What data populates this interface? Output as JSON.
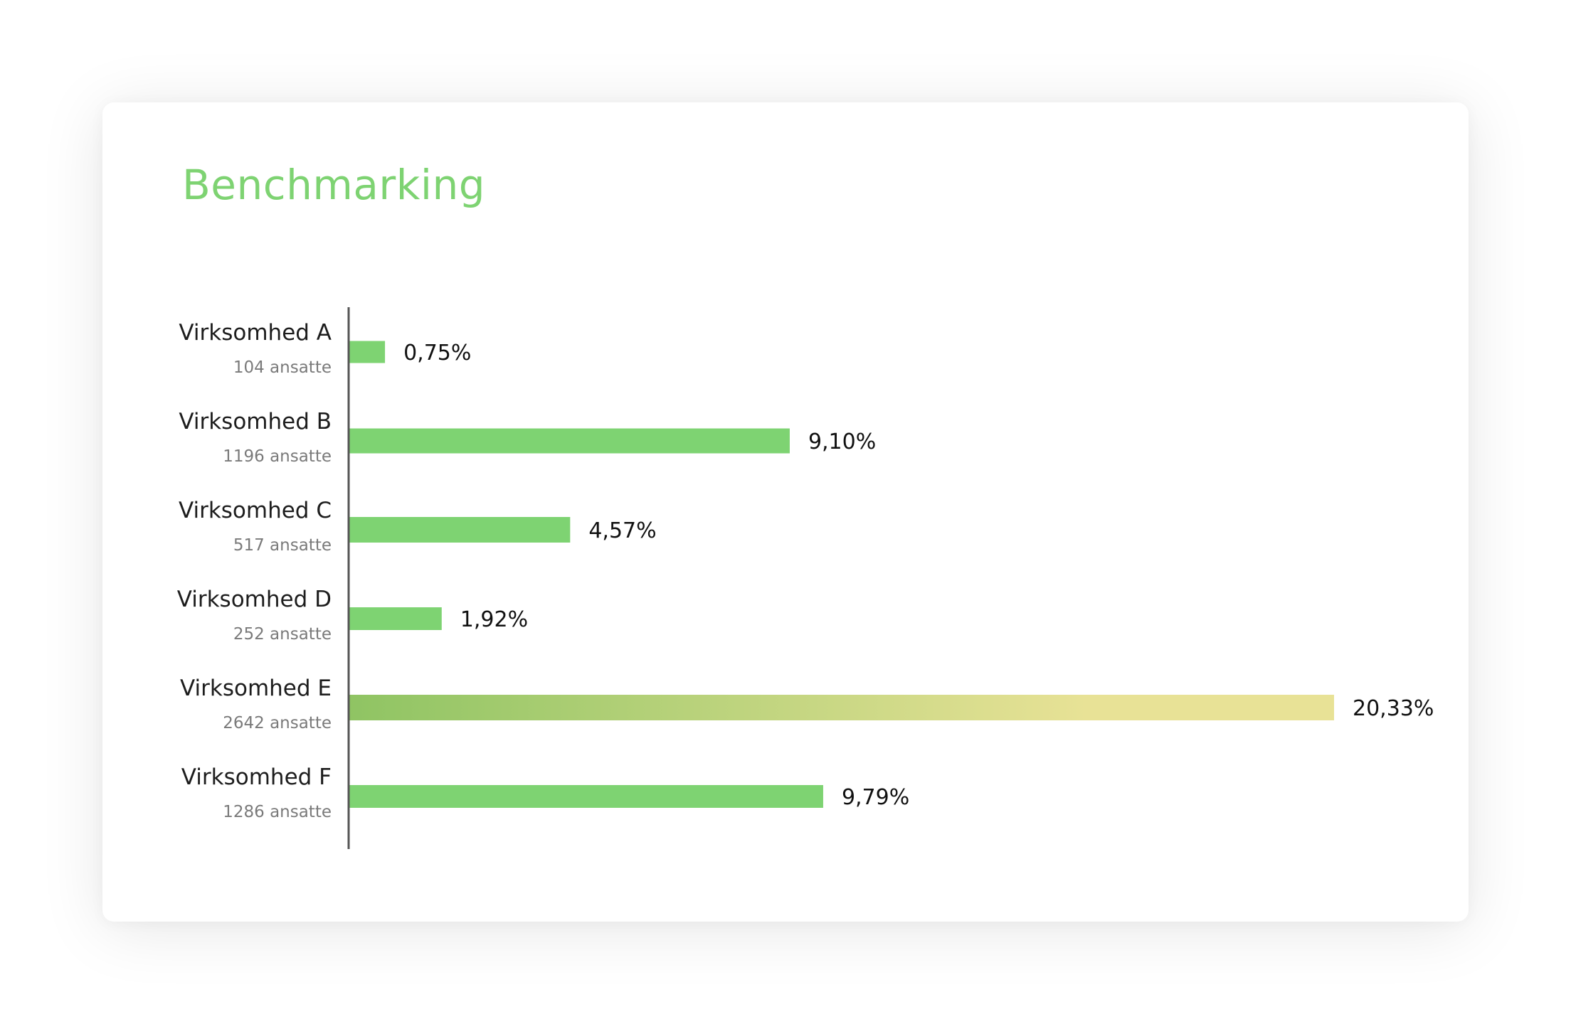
{
  "chart_data": {
    "type": "bar",
    "orientation": "horizontal",
    "title": "Benchmarking",
    "categories": [
      "Virksomhed A",
      "Virksomhed B",
      "Virksomhed C",
      "Virksomhed D",
      "Virksomhed E",
      "Virksomhed F"
    ],
    "subtitles": [
      "104 ansatte",
      "1196 ansatte",
      "517 ansatte",
      "252 ansatte",
      "2642 ansatte",
      "1286 ansatte"
    ],
    "values": [
      0.75,
      9.1,
      4.57,
      1.92,
      20.33,
      9.79
    ],
    "value_labels": [
      "0,75%",
      "9,10%",
      "4,57%",
      "1,92%",
      "20,33%",
      "9,79%"
    ],
    "highlight_index": 4,
    "grid": false,
    "legend": "none"
  },
  "colors": {
    "title": "#7ed372",
    "bar": "#7ed372",
    "highlight_start": "#8fc463",
    "highlight_end": "#e8e296",
    "axis": "#555555"
  }
}
